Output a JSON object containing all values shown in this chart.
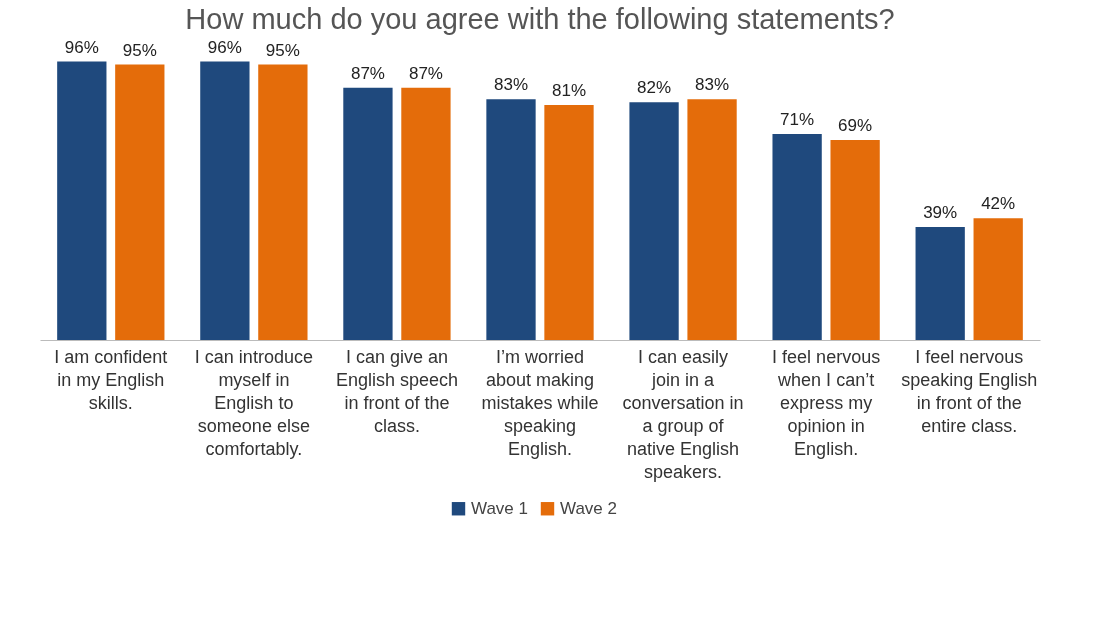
{
  "chart_data": {
    "type": "bar",
    "title": "How much do you agree with the following statements?",
    "categories": [
      "I am confident in my English skills.",
      "I can introduce myself in English to someone else comfortably.",
      "I can give an English speech in front of the class.",
      "I’m worried about making mistakes while speaking English.",
      "I can easily join in a conversation in a group of native English speakers.",
      "I feel nervous when I can’t express my opinion in English.",
      "I feel nervous speaking English in front of the entire class."
    ],
    "series": [
      {
        "name": "Wave 1",
        "color": "#1f497d",
        "values": [
          96,
          96,
          87,
          83,
          82,
          71,
          39
        ],
        "value_labels": [
          "96%",
          "96%",
          "87%",
          "83%",
          "82%",
          "71%",
          "39%"
        ]
      },
      {
        "name": "Wave 2",
        "color": "#e46c0a",
        "values": [
          95,
          95,
          87,
          81,
          83,
          69,
          42
        ],
        "value_labels": [
          "95%",
          "95%",
          "87%",
          "81%",
          "83%",
          "69%",
          "42%"
        ]
      }
    ],
    "legend": "bottom",
    "grid": false
  }
}
